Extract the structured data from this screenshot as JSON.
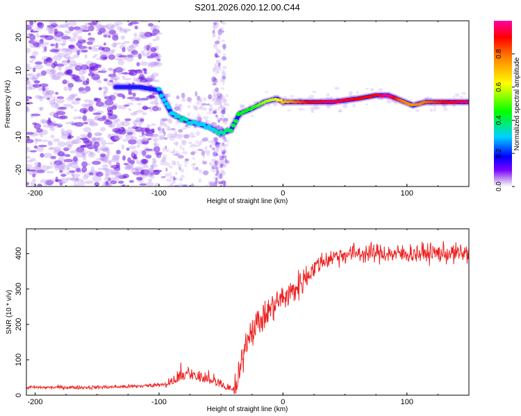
{
  "title": "S201.2026.020.12.00.C44",
  "chart_data": [
    {
      "type": "heatmap",
      "xlabel": "Height of straight line (km)",
      "ylabel": "Frequency (Hz)",
      "xlim": [
        -207,
        150
      ],
      "ylim": [
        -25,
        25
      ],
      "xticks": [
        -200,
        -100,
        0,
        100
      ],
      "yticks": [
        -20,
        -10,
        0,
        10,
        20
      ],
      "colorbar": {
        "label": "Normalized spectral amplitude",
        "range": [
          0,
          1
        ],
        "ticks": [
          0.0,
          0.2,
          0.4,
          0.6,
          0.8
        ],
        "tick_labels": [
          "0.0",
          "0.2",
          "0.4",
          "0.6",
          "0.8"
        ]
      },
      "ridge": {
        "x": [
          -130,
          -115,
          -100,
          -90,
          -80,
          -70,
          -60,
          -50,
          -42,
          -35,
          -25,
          -15,
          -5,
          0,
          10,
          20,
          40,
          60,
          75,
          85,
          95,
          105,
          115,
          130,
          150
        ],
        "y": [
          5,
          5,
          4,
          -3,
          -5,
          -6,
          -7,
          -9,
          -8,
          -3,
          -1.5,
          0.5,
          1.5,
          0.5,
          0.5,
          0.5,
          0.5,
          1.5,
          2.5,
          2.5,
          1,
          -0.5,
          0.5,
          0.5,
          0.5
        ],
        "amplitude": [
          0.25,
          0.2,
          0.3,
          0.3,
          0.35,
          0.3,
          0.3,
          0.35,
          0.4,
          0.45,
          0.45,
          0.55,
          0.6,
          0.7,
          0.8,
          0.9,
          0.95,
          0.9,
          0.9,
          1.0,
          0.8,
          0.75,
          0.8,
          0.9,
          0.95
        ]
      }
    },
    {
      "type": "line",
      "xlabel": "Height of straight line (km)",
      "ylabel": "SNR (10 * v/v)",
      "xlim": [
        -207,
        150
      ],
      "ylim": [
        0,
        470
      ],
      "xticks": [
        -200,
        -100,
        0,
        100
      ],
      "yticks": [
        0,
        100,
        200,
        300,
        400
      ],
      "series": [
        {
          "name": "SNR",
          "color": "#ee2222",
          "x": [
            -207,
            -180,
            -160,
            -140,
            -120,
            -105,
            -95,
            -90,
            -85,
            -80,
            -75,
            -70,
            -65,
            -60,
            -55,
            -50,
            -45,
            -40,
            -37,
            -35,
            -32,
            -30,
            -28,
            -25,
            -22,
            -20,
            -15,
            -10,
            -5,
            0,
            5,
            10,
            15,
            20,
            25,
            30,
            40,
            50,
            60,
            70,
            80,
            90,
            100,
            110,
            120,
            130,
            140,
            150
          ],
          "y": [
            22,
            22,
            22,
            23,
            25,
            28,
            33,
            45,
            55,
            70,
            75,
            62,
            60,
            55,
            48,
            35,
            25,
            22,
            22,
            60,
            120,
            150,
            170,
            185,
            200,
            205,
            220,
            245,
            262,
            275,
            285,
            300,
            320,
            340,
            358,
            375,
            390,
            398,
            402,
            400,
            402,
            398,
            400,
            400,
            402,
            400,
            400,
            402
          ]
        }
      ]
    }
  ]
}
